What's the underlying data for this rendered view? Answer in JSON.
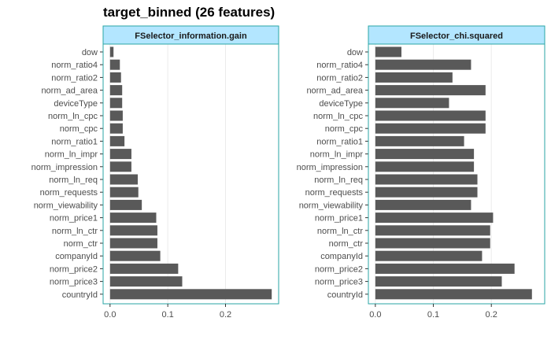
{
  "chart_data": {
    "type": "bar",
    "orientation": "horizontal",
    "title": "target_binned (26 features)",
    "categories": [
      "dow",
      "norm_ratio4",
      "norm_ratio2",
      "norm_ad_area",
      "deviceType",
      "norm_ln_cpc",
      "norm_cpc",
      "norm_ratio1",
      "norm_ln_impr",
      "norm_impression",
      "norm_ln_req",
      "norm_requests",
      "norm_viewability",
      "norm_price1",
      "norm_ln_ctr",
      "norm_ctr",
      "companyId",
      "norm_price2",
      "norm_price3",
      "countryId"
    ],
    "panels": [
      {
        "strip": "FSelector_information.gain",
        "xlim": [
          -0.012,
          0.292
        ],
        "xticks": [
          0.0,
          0.1,
          0.2
        ],
        "xtick_labels": [
          "0.0",
          "0.1",
          "0.2"
        ],
        "values": [
          0.006,
          0.017,
          0.019,
          0.021,
          0.021,
          0.022,
          0.022,
          0.025,
          0.037,
          0.037,
          0.048,
          0.049,
          0.055,
          0.08,
          0.082,
          0.082,
          0.087,
          0.118,
          0.125,
          0.28
        ]
      },
      {
        "strip": "FSelector_chi.squared",
        "xlim": [
          -0.012,
          0.292
        ],
        "xticks": [
          0.0,
          0.1,
          0.2
        ],
        "xtick_labels": [
          "0.0",
          "0.1",
          "0.2"
        ],
        "values": [
          0.045,
          0.165,
          0.133,
          0.19,
          0.127,
          0.19,
          0.19,
          0.153,
          0.17,
          0.17,
          0.176,
          0.176,
          0.165,
          0.203,
          0.198,
          0.198,
          0.184,
          0.24,
          0.218,
          0.27
        ]
      }
    ],
    "colors": {
      "bar": "#595959",
      "strip_fill": "#b3e6ff",
      "panel_border": "#2aa6a6",
      "grid": "#ebebeb"
    },
    "grid": true,
    "legend": "none"
  }
}
